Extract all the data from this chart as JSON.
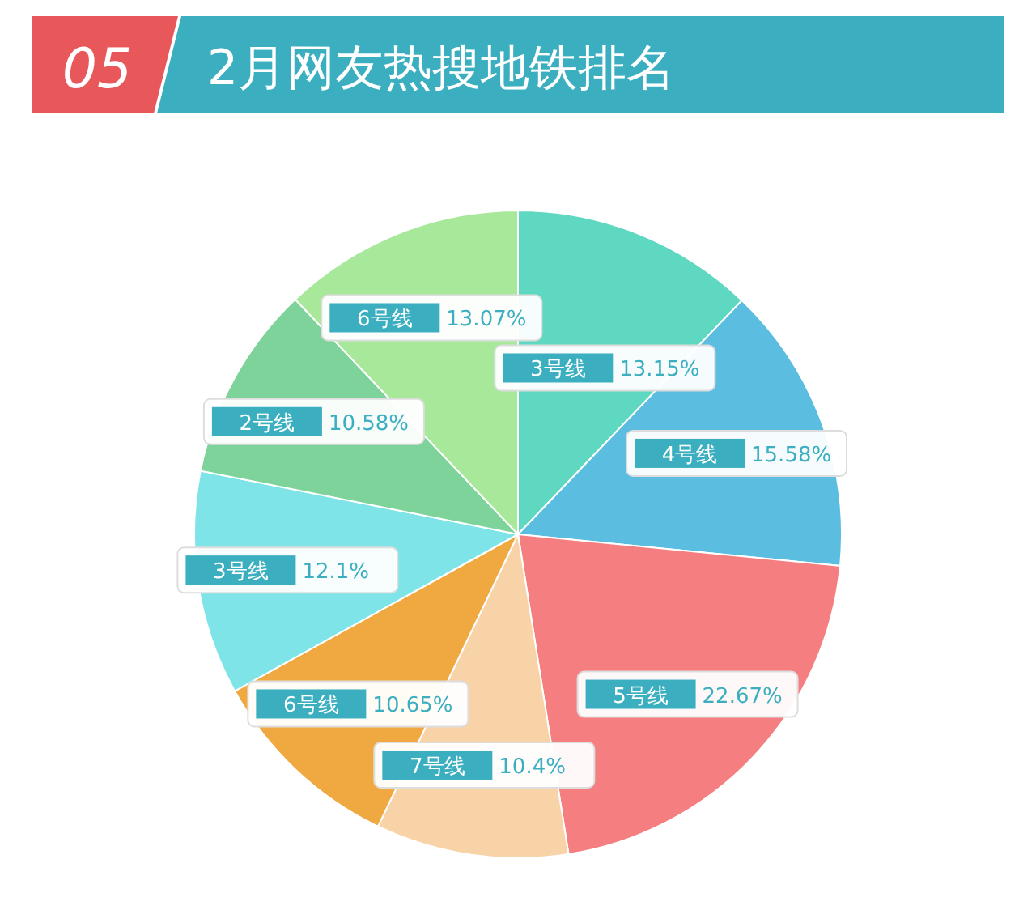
{
  "chart_data": {
    "type": "pie",
    "title": "2月网友热搜地铁排名",
    "annotations": [
      "05"
    ],
    "categories": [
      "3号线",
      "4号线",
      "5号线",
      "7号线",
      "6号线",
      "3号线",
      "2号线",
      "6号线"
    ],
    "values": [
      13.15,
      15.58,
      22.67,
      10.4,
      10.65,
      12.1,
      10.58,
      13.07
    ],
    "value_labels": [
      "13.15%",
      "15.58%",
      "22.67%",
      "10.4%",
      "10.65%",
      "12.1%",
      "10.58%",
      "13.07%"
    ],
    "colors": [
      "#5ed8c0",
      "#5bbde0",
      "#f57f80",
      "#f9d3a8",
      "#f0a840",
      "#7ee4e8",
      "#7dd39a",
      "#a8e89a"
    ],
    "legend": false
  }
}
